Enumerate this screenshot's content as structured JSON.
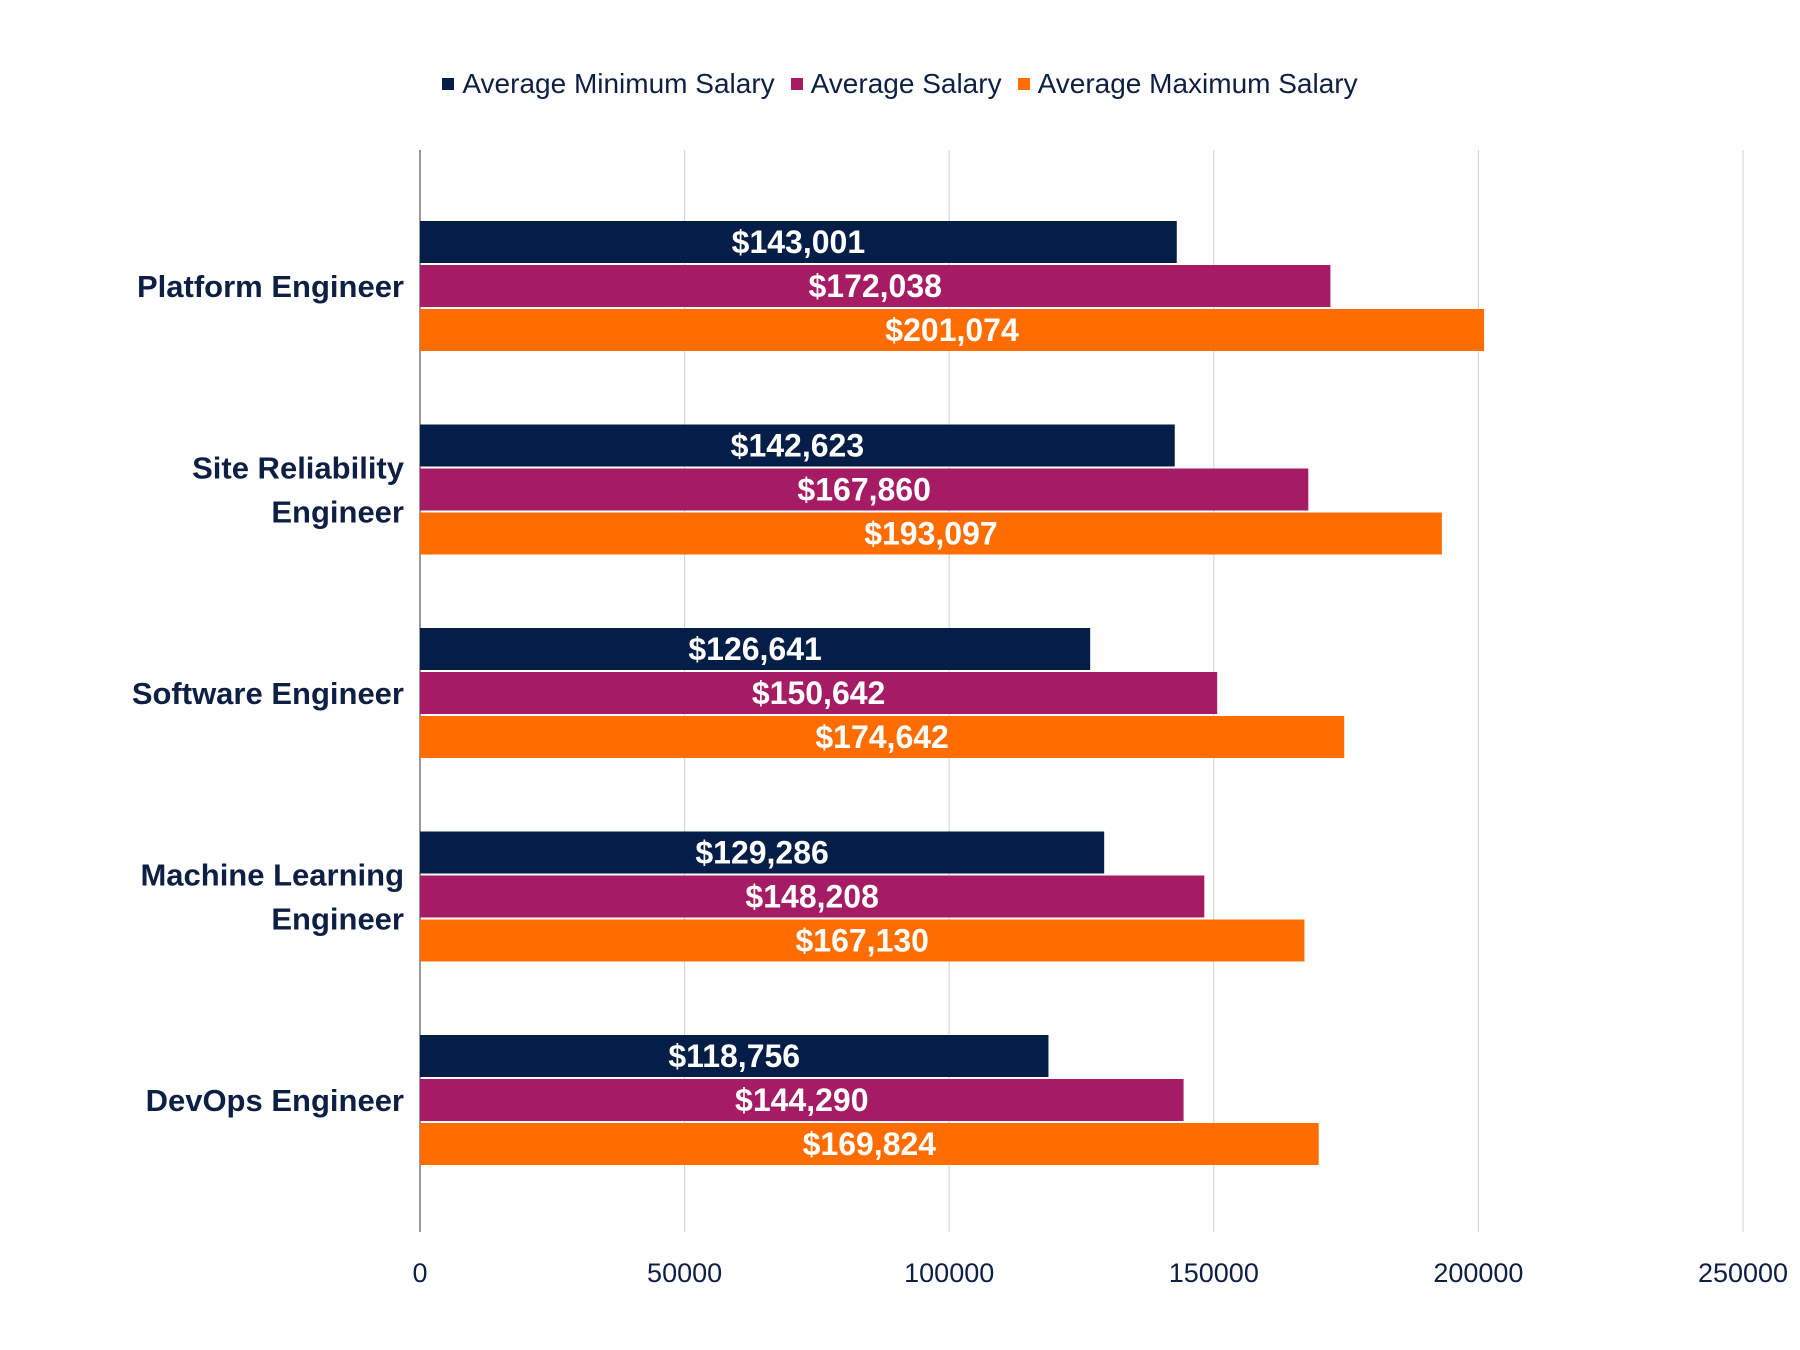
{
  "chart_data": {
    "type": "bar",
    "orientation": "horizontal",
    "categories": [
      "Platform Engineer",
      "Site Reliability Engineer",
      "Software Engineer",
      "Machine Learning Engineer",
      "DevOps Engineer"
    ],
    "category_lines": [
      [
        "Platform Engineer"
      ],
      [
        "Site Reliability",
        "Engineer"
      ],
      [
        "Software Engineer"
      ],
      [
        "Machine Learning",
        "Engineer"
      ],
      [
        "DevOps Engineer"
      ]
    ],
    "series": [
      {
        "name": "Average Minimum Salary",
        "color": "#041e48",
        "values": [
          143001,
          142623,
          126641,
          129286,
          118756
        ],
        "labels": [
          "$143,001",
          "$142,623",
          "$126,641",
          "$129,286",
          "$118,756"
        ]
      },
      {
        "name": "Average Salary",
        "color": "#a51c64",
        "values": [
          172038,
          167860,
          150642,
          148208,
          144290
        ],
        "labels": [
          "$172,038",
          "$167,860",
          "$150,642",
          "$148,208",
          "$144,290"
        ]
      },
      {
        "name": "Average Maximum Salary",
        "color": "#ff6d00",
        "values": [
          201074,
          193097,
          174642,
          167130,
          169824
        ],
        "labels": [
          "$201,074",
          "$193,097",
          "$174,642",
          "$167,130",
          "$169,824"
        ]
      }
    ],
    "xlim": [
      0,
      250000
    ],
    "xticks": [
      "0",
      "50000",
      "100000",
      "150000",
      "200000",
      "250000"
    ],
    "grid": true,
    "legend": "top",
    "title": "",
    "xlabel": "",
    "ylabel": ""
  }
}
